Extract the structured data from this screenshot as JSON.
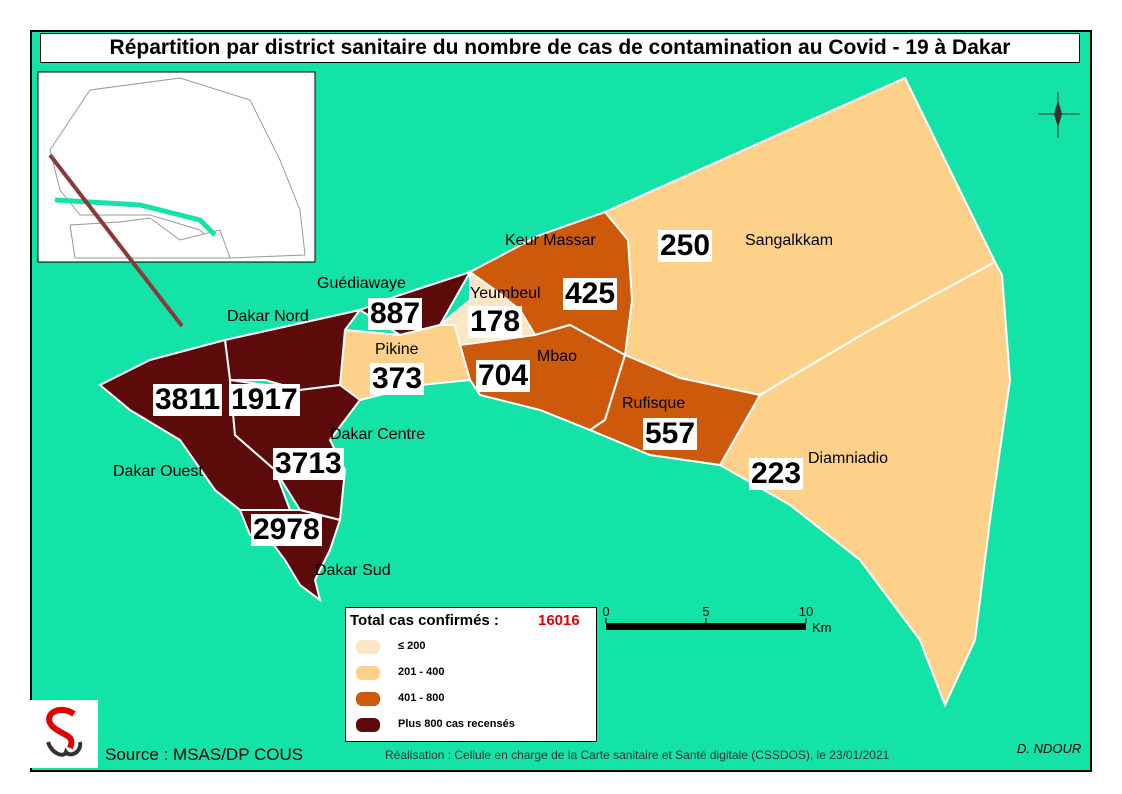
{
  "title": "Répartition par district sanitaire du nombre de cas de contamination au Covid - 19 à Dakar",
  "districts": [
    {
      "name": "Sangalkkam",
      "cases": 250,
      "color": "#fdd18a"
    },
    {
      "name": "Diamniadio",
      "cases": 223,
      "color": "#fdd18a"
    },
    {
      "name": "Keur Massar",
      "cases": 425,
      "color": "#cc5a0a"
    },
    {
      "name": "Yeumbeul",
      "cases": 178,
      "color": "#fde6c6"
    },
    {
      "name": "Mbao",
      "cases": 704,
      "color": "#cc5a0a"
    },
    {
      "name": "Rufisque",
      "cases": 557,
      "color": "#cc5a0a"
    },
    {
      "name": "Guédiawaye",
      "cases": 887,
      "color": "#5c0a0a"
    },
    {
      "name": "Pikine",
      "cases": 373,
      "color": "#fdd18a"
    },
    {
      "name": "Dakar Nord",
      "cases": 1917,
      "color": "#5c0a0a"
    },
    {
      "name": "Dakar Ouest",
      "cases": 3811,
      "color": "#5c0a0a"
    },
    {
      "name": "Dakar Centre",
      "cases": 3713,
      "color": "#5c0a0a"
    },
    {
      "name": "Dakar Sud",
      "cases": 2978,
      "color": "#5c0a0a"
    }
  ],
  "legend": {
    "total_label": "Total cas confirmés :",
    "total": 16016,
    "classes": [
      {
        "label": "≤ 200",
        "color": "#fde6c6"
      },
      {
        "label": "201 - 400",
        "color": "#fdd18a"
      },
      {
        "label": "401 - 800",
        "color": "#cc5a0a"
      },
      {
        "label": "Plus 800 cas recensés",
        "color": "#5c0a0a"
      }
    ]
  },
  "scale": {
    "ticks": [
      0,
      5,
      10
    ],
    "unit": "Km"
  },
  "source": "Source : MSAS/DP COUS",
  "credit": "Réalisation : Cellule en charge de la Carte sanitaire et Santé digitale (CSSDOS), le 23/01/2021",
  "author": "D. NDOUR"
}
